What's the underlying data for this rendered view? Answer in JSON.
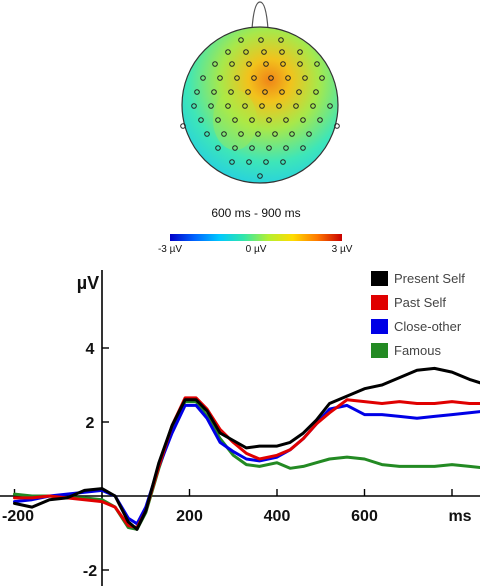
{
  "topomap": {
    "title": "600 ms - 900 ms",
    "colorbar": {
      "min_label": "-3 µV",
      "mid_label": "0 µV",
      "max_label": "3 µV",
      "colors": [
        "#0000c8",
        "#0064ff",
        "#00c8ff",
        "#32e6aa",
        "#b4f032",
        "#ffdc00",
        "#ff7800",
        "#c80000"
      ]
    },
    "field_colors": {
      "rim": "#1cc8f0",
      "outer": "#3ee6b8",
      "mid": "#a8e84a",
      "inner": "#f2c21c",
      "hot": "#f08418"
    }
  },
  "chart_data": {
    "type": "line",
    "ylabel": "µV",
    "xlabel": "ms",
    "xlim": [
      -200,
      900
    ],
    "ylim": [
      -2,
      5
    ],
    "x_ticks": [
      -200,
      200,
      400,
      600
    ],
    "x_tick_labels": [
      "-200",
      "200",
      "400",
      "600"
    ],
    "y_ticks": [
      4,
      2,
      -2
    ],
    "y_tick_labels": [
      "4",
      "2",
      "-2"
    ],
    "legend_position": "top-right",
    "series": [
      {
        "name": "Present Self",
        "color": "#000000",
        "points": [
          [
            -200,
            -0.2
          ],
          [
            -160,
            -0.3
          ],
          [
            -120,
            -0.1
          ],
          [
            -80,
            -0.05
          ],
          [
            -40,
            0.15
          ],
          [
            0,
            0.2
          ],
          [
            30,
            0
          ],
          [
            60,
            -0.7
          ],
          [
            80,
            -0.9
          ],
          [
            100,
            -0.4
          ],
          [
            130,
            0.9
          ],
          [
            160,
            1.9
          ],
          [
            190,
            2.6
          ],
          [
            215,
            2.6
          ],
          [
            240,
            2.3
          ],
          [
            270,
            1.7
          ],
          [
            300,
            1.5
          ],
          [
            330,
            1.3
          ],
          [
            360,
            1.35
          ],
          [
            400,
            1.35
          ],
          [
            430,
            1.45
          ],
          [
            460,
            1.7
          ],
          [
            490,
            2.05
          ],
          [
            520,
            2.5
          ],
          [
            560,
            2.7
          ],
          [
            600,
            2.9
          ],
          [
            640,
            3.0
          ],
          [
            680,
            3.2
          ],
          [
            720,
            3.4
          ],
          [
            760,
            3.45
          ],
          [
            800,
            3.35
          ],
          [
            840,
            3.15
          ],
          [
            880,
            3.0
          ],
          [
            900,
            2.95
          ]
        ]
      },
      {
        "name": "Past Self",
        "color": "#e00000",
        "points": [
          [
            -200,
            -0.05
          ],
          [
            -160,
            -0.05
          ],
          [
            -120,
            0
          ],
          [
            -80,
            -0.05
          ],
          [
            -40,
            -0.1
          ],
          [
            0,
            -0.15
          ],
          [
            30,
            -0.3
          ],
          [
            60,
            -0.8
          ],
          [
            80,
            -0.85
          ],
          [
            100,
            -0.4
          ],
          [
            130,
            0.8
          ],
          [
            160,
            1.9
          ],
          [
            190,
            2.65
          ],
          [
            215,
            2.65
          ],
          [
            240,
            2.35
          ],
          [
            270,
            1.8
          ],
          [
            300,
            1.45
          ],
          [
            330,
            1.15
          ],
          [
            360,
            1.0
          ],
          [
            400,
            1.1
          ],
          [
            430,
            1.25
          ],
          [
            460,
            1.55
          ],
          [
            490,
            1.95
          ],
          [
            520,
            2.25
          ],
          [
            560,
            2.6
          ],
          [
            600,
            2.55
          ],
          [
            640,
            2.5
          ],
          [
            680,
            2.55
          ],
          [
            720,
            2.5
          ],
          [
            760,
            2.5
          ],
          [
            800,
            2.55
          ],
          [
            840,
            2.5
          ],
          [
            880,
            2.5
          ],
          [
            900,
            2.5
          ]
        ]
      },
      {
        "name": "Close-other",
        "color": "#0000e6",
        "points": [
          [
            -200,
            -0.15
          ],
          [
            -160,
            -0.1
          ],
          [
            -120,
            0
          ],
          [
            -80,
            0.05
          ],
          [
            -40,
            0.1
          ],
          [
            0,
            0.15
          ],
          [
            30,
            0
          ],
          [
            60,
            -0.6
          ],
          [
            80,
            -0.75
          ],
          [
            100,
            -0.3
          ],
          [
            130,
            0.8
          ],
          [
            160,
            1.7
          ],
          [
            190,
            2.45
          ],
          [
            215,
            2.45
          ],
          [
            240,
            2.1
          ],
          [
            270,
            1.45
          ],
          [
            300,
            1.2
          ],
          [
            330,
            1.0
          ],
          [
            360,
            0.95
          ],
          [
            400,
            1.05
          ],
          [
            430,
            1.25
          ],
          [
            460,
            1.55
          ],
          [
            490,
            1.95
          ],
          [
            520,
            2.35
          ],
          [
            560,
            2.45
          ],
          [
            600,
            2.2
          ],
          [
            640,
            2.2
          ],
          [
            680,
            2.15
          ],
          [
            720,
            2.1
          ],
          [
            760,
            2.15
          ],
          [
            800,
            2.2
          ],
          [
            840,
            2.25
          ],
          [
            880,
            2.3
          ],
          [
            900,
            2.25
          ]
        ]
      },
      {
        "name": "Famous",
        "color": "#238a23",
        "points": [
          [
            -200,
            0.05
          ],
          [
            -160,
            0
          ],
          [
            -120,
            0
          ],
          [
            -80,
            -0.05
          ],
          [
            -40,
            -0.05
          ],
          [
            0,
            -0.1
          ],
          [
            30,
            -0.3
          ],
          [
            60,
            -0.85
          ],
          [
            80,
            -0.9
          ],
          [
            100,
            -0.45
          ],
          [
            130,
            0.75
          ],
          [
            160,
            1.8
          ],
          [
            190,
            2.55
          ],
          [
            215,
            2.55
          ],
          [
            240,
            2.15
          ],
          [
            270,
            1.55
          ],
          [
            300,
            1.1
          ],
          [
            330,
            0.85
          ],
          [
            360,
            0.8
          ],
          [
            400,
            0.9
          ],
          [
            430,
            0.75
          ],
          [
            460,
            0.8
          ],
          [
            490,
            0.9
          ],
          [
            520,
            1.0
          ],
          [
            560,
            1.05
          ],
          [
            600,
            1.0
          ],
          [
            640,
            0.85
          ],
          [
            680,
            0.8
          ],
          [
            720,
            0.8
          ],
          [
            760,
            0.8
          ],
          [
            800,
            0.85
          ],
          [
            840,
            0.8
          ],
          [
            880,
            0.75
          ],
          [
            900,
            0.75
          ]
        ]
      }
    ]
  }
}
